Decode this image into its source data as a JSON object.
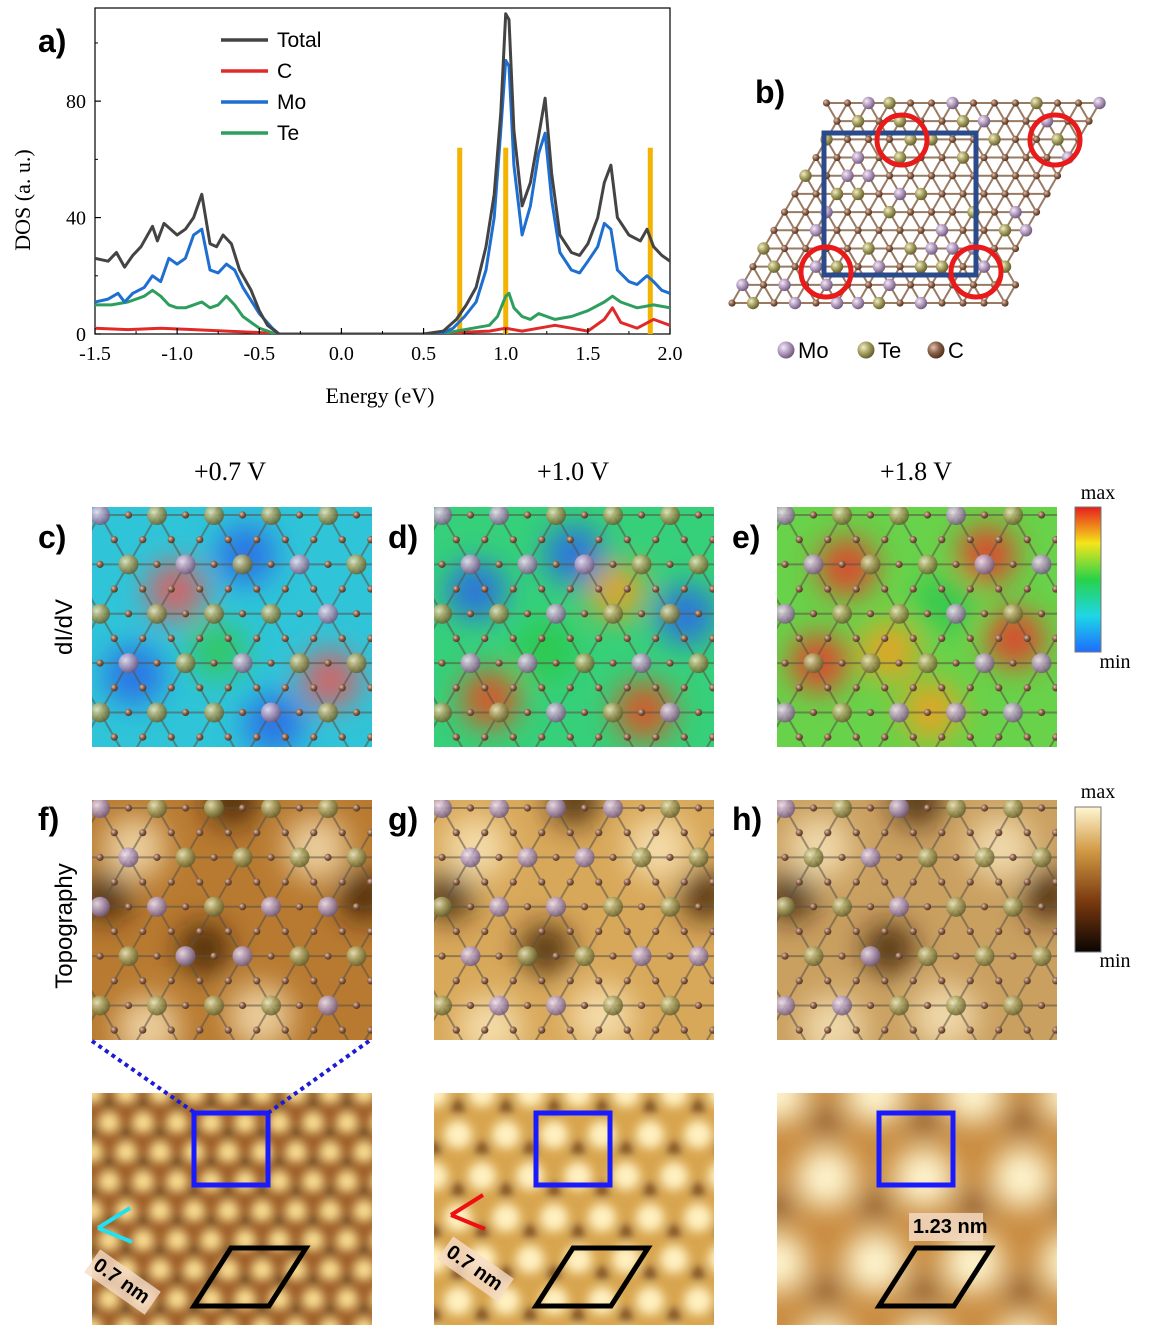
{
  "panel_labels": {
    "a": "a)",
    "b": "b)",
    "c": "c)",
    "d": "d)",
    "e": "e)",
    "f": "f)",
    "g": "g)",
    "h": "h)"
  },
  "columns": [
    "+0.7 V",
    "+1.0 V",
    "+1.8 V"
  ],
  "row_labels": {
    "didv": "dI/dV",
    "topo": "Topography"
  },
  "colorbars": {
    "didv": {
      "max": "max",
      "min": "min"
    },
    "topo": {
      "max": "max",
      "min": "min"
    }
  },
  "structure_legend": [
    {
      "name": "Mo",
      "color": "#b49cc0"
    },
    {
      "name": "Te",
      "color": "#a7a060"
    },
    {
      "name": "C",
      "color": "#8a6048"
    }
  ],
  "scale_labels": {
    "c": "0.7 nm",
    "d": "0.7 nm",
    "e": "1.23 nm"
  },
  "chart_data": {
    "type": "line",
    "xlabel": "Energy (eV)",
    "ylabel": "DOS (a. u.)",
    "xlim": [
      -1.5,
      2.0
    ],
    "ylim": [
      0,
      112
    ],
    "xticks": [
      -1.5,
      -1.0,
      -0.5,
      0.0,
      0.5,
      1.0,
      1.5,
      2.0
    ],
    "xtick_labels": [
      "-1.5",
      "-1.0",
      "-0.5",
      "0.0",
      "0.5",
      "1.0",
      "1.5",
      "2.0"
    ],
    "yticks": [
      0,
      40,
      80
    ],
    "ytick_labels": [
      "0",
      "40",
      "80"
    ],
    "legend_position": "top-center",
    "series": [
      {
        "name": "Total",
        "color": "#444444",
        "x": [
          -1.5,
          -1.42,
          -1.37,
          -1.32,
          -1.27,
          -1.22,
          -1.15,
          -1.12,
          -1.08,
          -1.04,
          -1.0,
          -0.95,
          -0.9,
          -0.85,
          -0.8,
          -0.76,
          -0.72,
          -0.67,
          -0.62,
          -0.55,
          -0.5,
          -0.45,
          -0.38,
          -0.3,
          0.0,
          0.5,
          0.62,
          0.7,
          0.76,
          0.82,
          0.88,
          0.93,
          0.97,
          1.0,
          1.02,
          1.05,
          1.1,
          1.15,
          1.2,
          1.24,
          1.28,
          1.33,
          1.4,
          1.45,
          1.5,
          1.56,
          1.6,
          1.64,
          1.68,
          1.75,
          1.82,
          1.86,
          1.9,
          1.95,
          2.0
        ],
        "y": [
          26,
          25,
          28,
          23,
          27,
          30,
          37,
          32,
          38,
          36,
          34,
          36,
          40,
          48,
          31,
          30,
          34,
          31,
          22,
          15,
          8,
          3,
          0,
          0,
          0,
          0,
          1,
          5,
          10,
          16,
          30,
          48,
          76,
          110,
          108,
          70,
          44,
          52,
          68,
          81,
          55,
          34,
          28,
          27,
          31,
          40,
          52,
          58,
          40,
          34,
          32,
          36,
          30,
          27,
          25
        ]
      },
      {
        "name": "C",
        "color": "#e02a2a",
        "x": [
          -1.5,
          -1.3,
          -1.1,
          -0.9,
          -0.7,
          -0.5,
          -0.4,
          0.0,
          0.5,
          0.7,
          0.9,
          1.0,
          1.1,
          1.2,
          1.3,
          1.4,
          1.5,
          1.6,
          1.65,
          1.7,
          1.8,
          1.9,
          2.0
        ],
        "y": [
          2,
          1.5,
          2,
          1.5,
          1,
          0.5,
          0,
          0,
          0,
          0.5,
          1,
          2,
          1,
          2,
          3,
          2,
          1,
          5,
          9,
          4,
          2,
          5,
          3
        ]
      },
      {
        "name": "Mo",
        "color": "#1f6fd1",
        "x": [
          -1.5,
          -1.42,
          -1.36,
          -1.32,
          -1.27,
          -1.2,
          -1.15,
          -1.1,
          -1.05,
          -1.0,
          -0.95,
          -0.9,
          -0.85,
          -0.8,
          -0.75,
          -0.7,
          -0.65,
          -0.6,
          -0.5,
          -0.42,
          -0.38,
          0.0,
          0.6,
          0.68,
          0.75,
          0.82,
          0.88,
          0.93,
          0.97,
          1.0,
          1.02,
          1.05,
          1.1,
          1.15,
          1.2,
          1.24,
          1.28,
          1.33,
          1.4,
          1.45,
          1.5,
          1.56,
          1.6,
          1.64,
          1.68,
          1.75,
          1.8,
          1.86,
          1.9,
          1.95,
          2.0
        ],
        "y": [
          11,
          12,
          14,
          11,
          14,
          16,
          20,
          18,
          26,
          24,
          26,
          34,
          36,
          22,
          21,
          24,
          22,
          16,
          7,
          2,
          0,
          0,
          0,
          2,
          6,
          11,
          22,
          40,
          70,
          94,
          92,
          58,
          34,
          44,
          62,
          69,
          46,
          28,
          22,
          21,
          25,
          30,
          38,
          36,
          22,
          18,
          17,
          20,
          18,
          15,
          14
        ]
      },
      {
        "name": "Te",
        "color": "#2e9e5e",
        "x": [
          -1.5,
          -1.4,
          -1.3,
          -1.2,
          -1.15,
          -1.1,
          -1.05,
          -1.0,
          -0.95,
          -0.9,
          -0.85,
          -0.8,
          -0.75,
          -0.7,
          -0.65,
          -0.6,
          -0.55,
          -0.5,
          -0.45,
          -0.4,
          0.0,
          0.6,
          0.7,
          0.8,
          0.9,
          0.95,
          1.0,
          1.02,
          1.05,
          1.1,
          1.15,
          1.2,
          1.25,
          1.3,
          1.4,
          1.5,
          1.6,
          1.65,
          1.7,
          1.8,
          1.9,
          2.0
        ],
        "y": [
          10,
          10,
          11,
          13,
          15,
          13,
          10,
          9,
          9,
          10,
          11,
          9,
          10,
          13,
          10,
          6,
          4,
          2,
          1,
          0,
          0,
          0,
          1,
          2,
          3,
          6,
          13,
          14,
          9,
          6,
          5,
          7,
          6,
          5,
          6,
          8,
          11,
          13,
          11,
          9,
          10,
          9
        ]
      }
    ],
    "markers": [
      {
        "x": 0.72,
        "y": 64,
        "color": "#f2b400"
      },
      {
        "x": 1.0,
        "y": 64,
        "color": "#f2b400"
      },
      {
        "x": 1.88,
        "y": 64,
        "color": "#f2b400"
      }
    ]
  }
}
